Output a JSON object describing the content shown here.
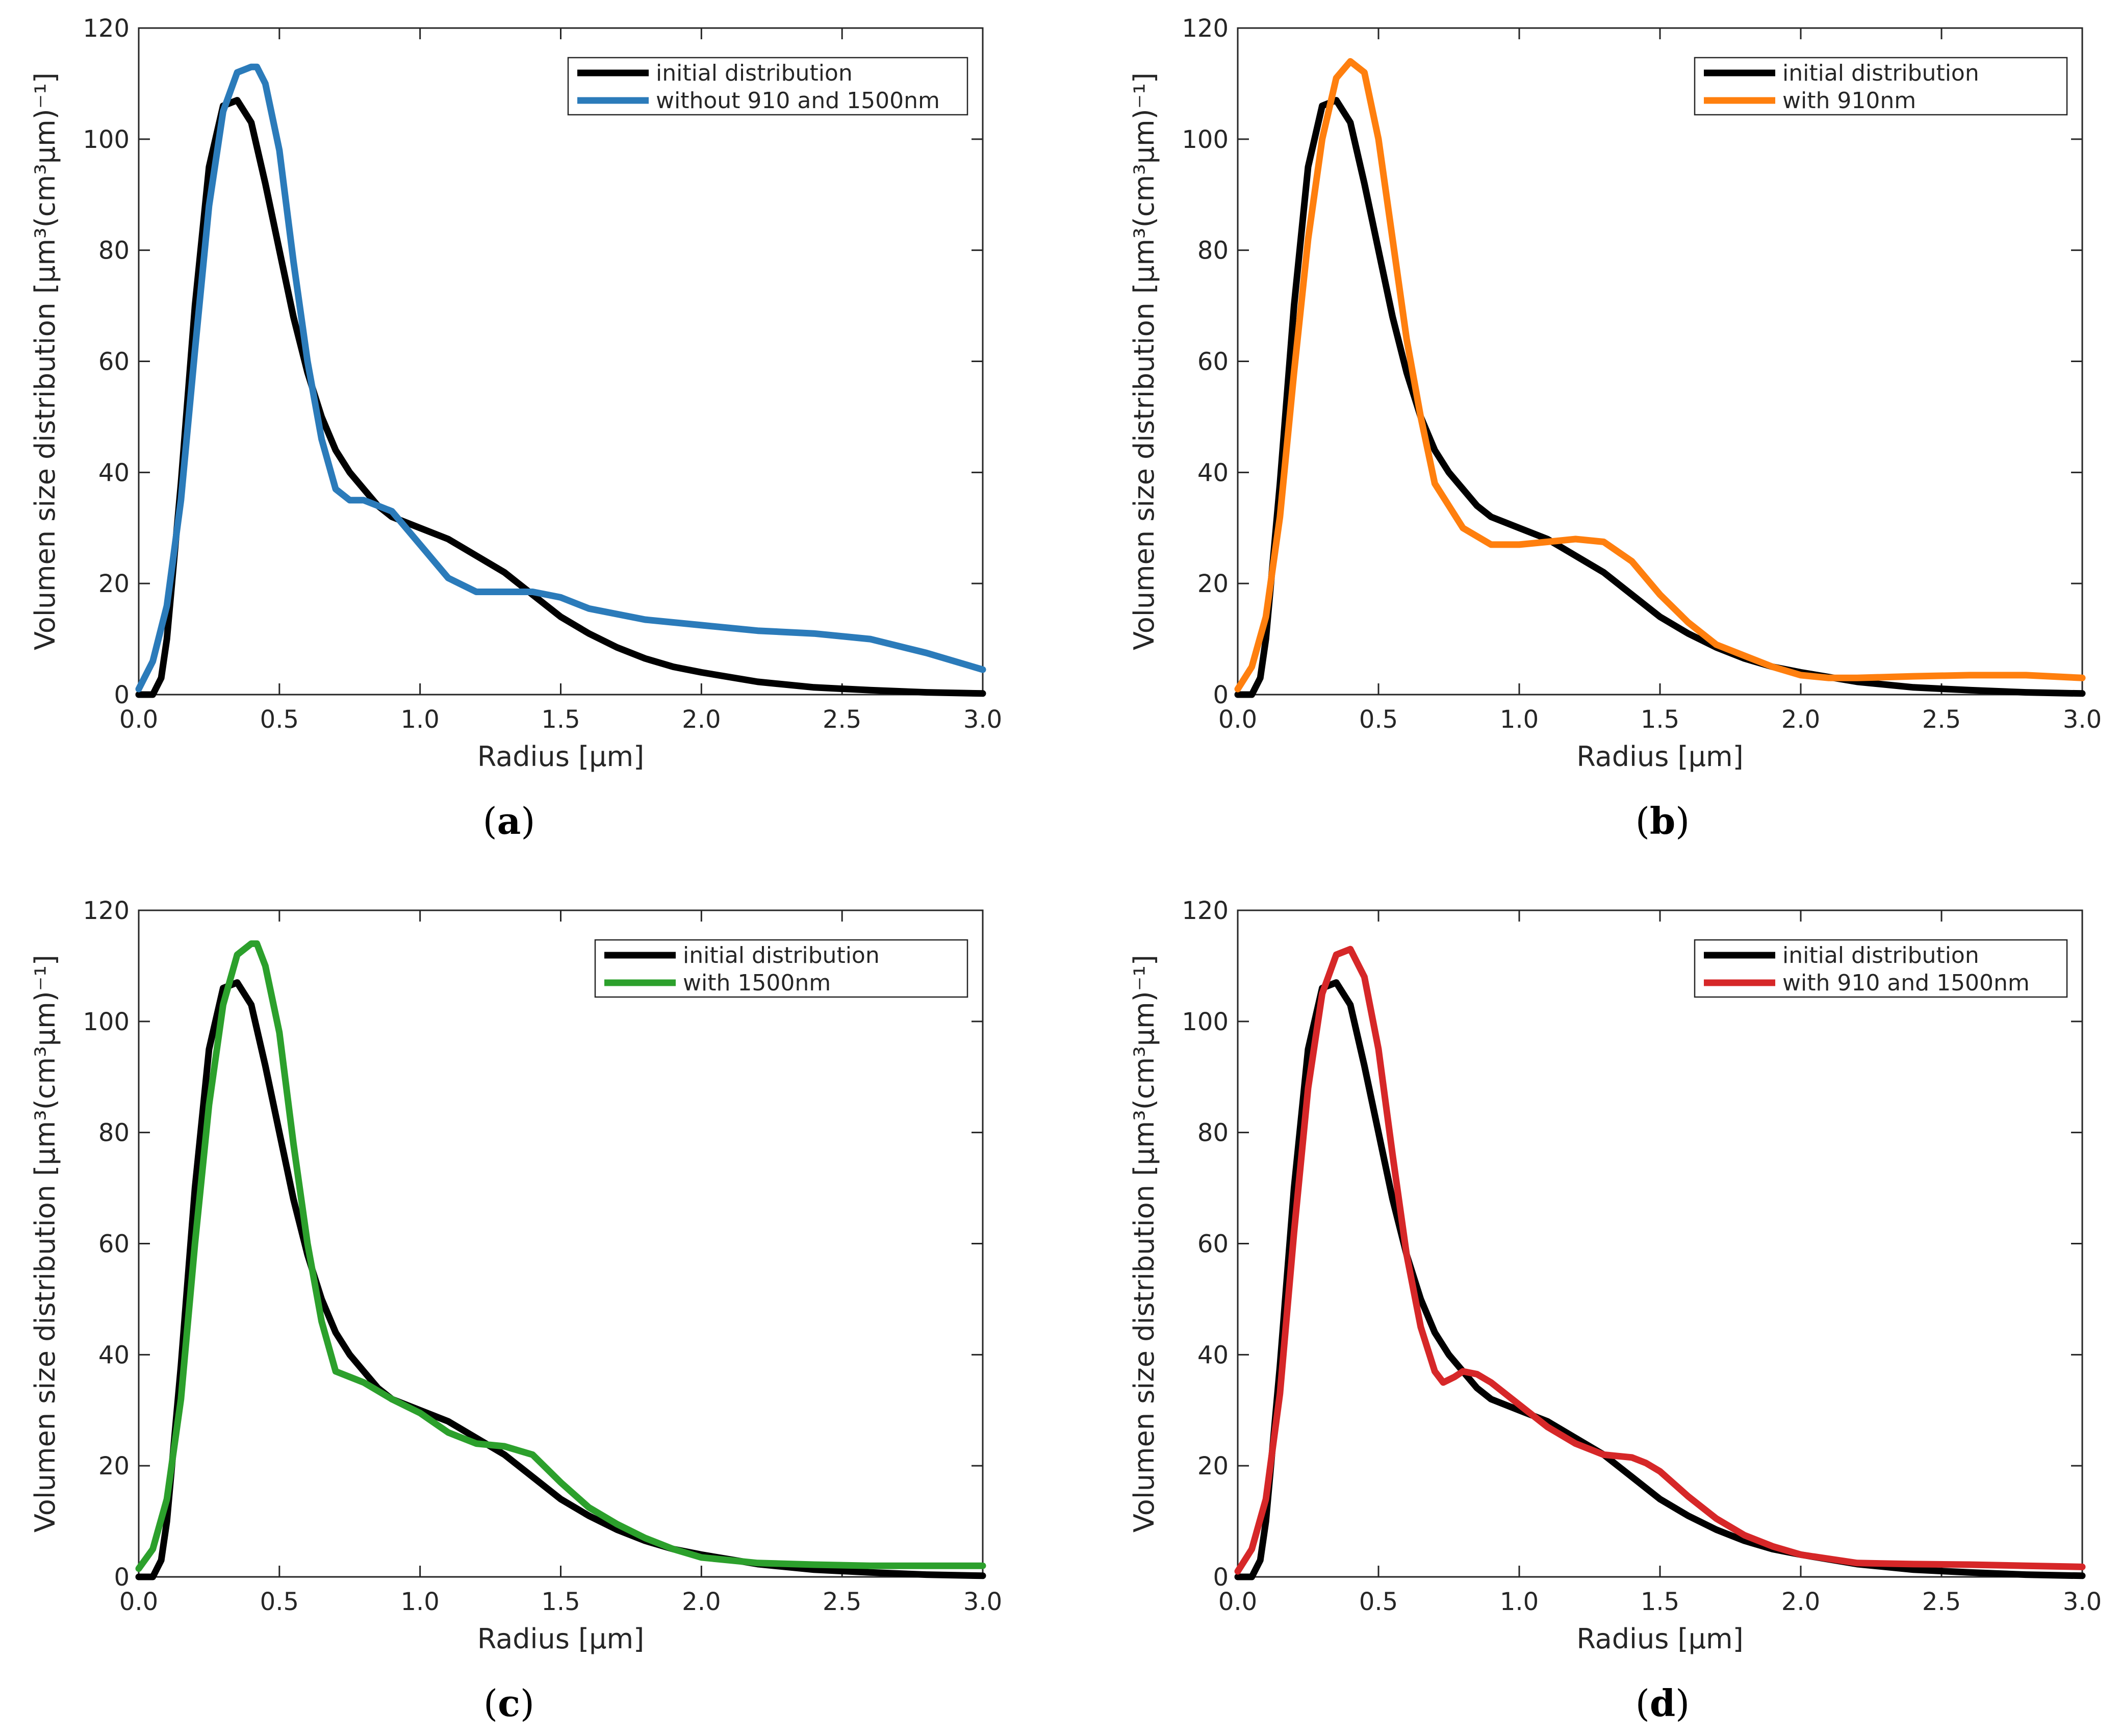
{
  "chart_data": [
    {
      "type": "line",
      "panel_label": "a",
      "xlabel": "Radius [μm]",
      "ylabel": "Volumen size distribution [μm³(cm³μm)⁻¹]",
      "xlim": [
        0,
        3
      ],
      "ylim": [
        0,
        120
      ],
      "xticks": [
        "0.0",
        "0.5",
        "1.0",
        "1.5",
        "2.0",
        "2.5",
        "3.0"
      ],
      "yticks": [
        "0",
        "20",
        "40",
        "60",
        "80",
        "100",
        "120"
      ],
      "legend_position": "top-right",
      "series": [
        {
          "name": "initial distribution",
          "color": "#000000",
          "x": [
            0,
            0.05,
            0.08,
            0.1,
            0.15,
            0.2,
            0.25,
            0.3,
            0.35,
            0.4,
            0.45,
            0.5,
            0.55,
            0.6,
            0.65,
            0.7,
            0.75,
            0.8,
            0.85,
            0.9,
            1.0,
            1.1,
            1.2,
            1.3,
            1.4,
            1.5,
            1.6,
            1.7,
            1.8,
            1.9,
            2.0,
            2.2,
            2.4,
            2.6,
            2.8,
            3.0
          ],
          "y": [
            0,
            0,
            3,
            10,
            38,
            70,
            95,
            106,
            107,
            103,
            92,
            80,
            68,
            58,
            50,
            44,
            40,
            37,
            34,
            32,
            30,
            28,
            25,
            22,
            18,
            14,
            11,
            8.5,
            6.5,
            5,
            4,
            2.3,
            1.3,
            0.8,
            0.4,
            0.2
          ]
        },
        {
          "name": "without 910 and 1500nm",
          "color": "#2b7bba",
          "x": [
            0,
            0.05,
            0.1,
            0.15,
            0.2,
            0.25,
            0.3,
            0.35,
            0.4,
            0.42,
            0.45,
            0.5,
            0.55,
            0.6,
            0.65,
            0.7,
            0.75,
            0.8,
            0.85,
            0.9,
            1.0,
            1.1,
            1.2,
            1.3,
            1.4,
            1.5,
            1.6,
            1.7,
            1.8,
            2.0,
            2.2,
            2.4,
            2.6,
            2.8,
            3.0
          ],
          "y": [
            1,
            6,
            16,
            35,
            62,
            88,
            105,
            112,
            113,
            113,
            110,
            98,
            78,
            60,
            46,
            37,
            35,
            35,
            34,
            33,
            27,
            21,
            18.5,
            18.5,
            18.5,
            17.5,
            15.5,
            14.5,
            13.5,
            12.5,
            11.5,
            11,
            10,
            7.5,
            4.5
          ]
        }
      ]
    },
    {
      "type": "line",
      "panel_label": "b",
      "xlabel": "Radius [μm]",
      "ylabel": "Volumen size distribution [μm³(cm³μm)⁻¹]",
      "xlim": [
        0,
        3
      ],
      "ylim": [
        0,
        120
      ],
      "xticks": [
        "0.0",
        "0.5",
        "1.0",
        "1.5",
        "2.0",
        "2.5",
        "3.0"
      ],
      "yticks": [
        "0",
        "20",
        "40",
        "60",
        "80",
        "100",
        "120"
      ],
      "legend_position": "top-right",
      "series": [
        {
          "name": "initial distribution",
          "color": "#000000",
          "x": [
            0,
            0.05,
            0.08,
            0.1,
            0.15,
            0.2,
            0.25,
            0.3,
            0.35,
            0.4,
            0.45,
            0.5,
            0.55,
            0.6,
            0.65,
            0.7,
            0.75,
            0.8,
            0.85,
            0.9,
            1.0,
            1.1,
            1.2,
            1.3,
            1.4,
            1.5,
            1.6,
            1.7,
            1.8,
            1.9,
            2.0,
            2.2,
            2.4,
            2.6,
            2.8,
            3.0
          ],
          "y": [
            0,
            0,
            3,
            10,
            38,
            70,
            95,
            106,
            107,
            103,
            92,
            80,
            68,
            58,
            50,
            44,
            40,
            37,
            34,
            32,
            30,
            28,
            25,
            22,
            18,
            14,
            11,
            8.5,
            6.5,
            5,
            4,
            2.3,
            1.3,
            0.8,
            0.4,
            0.2
          ]
        },
        {
          "name": "with 910nm",
          "color": "#ff7f0e",
          "x": [
            0,
            0.05,
            0.1,
            0.15,
            0.2,
            0.25,
            0.3,
            0.35,
            0.4,
            0.45,
            0.5,
            0.55,
            0.6,
            0.65,
            0.7,
            0.75,
            0.8,
            0.9,
            1.0,
            1.1,
            1.2,
            1.3,
            1.4,
            1.5,
            1.6,
            1.7,
            1.8,
            1.9,
            2.0,
            2.1,
            2.2,
            2.4,
            2.6,
            2.8,
            3.0
          ],
          "y": [
            1,
            5,
            14,
            32,
            58,
            82,
            100,
            111,
            114,
            112,
            100,
            82,
            64,
            50,
            38,
            34,
            30,
            27,
            27,
            27.5,
            28,
            27.5,
            24,
            18,
            13,
            9,
            7,
            5,
            3.5,
            3,
            3,
            3.3,
            3.5,
            3.5,
            3
          ]
        }
      ]
    },
    {
      "type": "line",
      "panel_label": "c",
      "xlabel": "Radius [μm]",
      "ylabel": "Volumen size distribution [μm³(cm³μm)⁻¹]",
      "xlim": [
        0,
        3
      ],
      "ylim": [
        0,
        120
      ],
      "xticks": [
        "0.0",
        "0.5",
        "1.0",
        "1.5",
        "2.0",
        "2.5",
        "3.0"
      ],
      "yticks": [
        "0",
        "20",
        "40",
        "60",
        "80",
        "100",
        "120"
      ],
      "legend_position": "top-right",
      "series": [
        {
          "name": "initial distribution",
          "color": "#000000",
          "x": [
            0,
            0.05,
            0.08,
            0.1,
            0.15,
            0.2,
            0.25,
            0.3,
            0.35,
            0.4,
            0.45,
            0.5,
            0.55,
            0.6,
            0.65,
            0.7,
            0.75,
            0.8,
            0.85,
            0.9,
            1.0,
            1.1,
            1.2,
            1.3,
            1.4,
            1.5,
            1.6,
            1.7,
            1.8,
            1.9,
            2.0,
            2.2,
            2.4,
            2.6,
            2.8,
            3.0
          ],
          "y": [
            0,
            0,
            3,
            10,
            38,
            70,
            95,
            106,
            107,
            103,
            92,
            80,
            68,
            58,
            50,
            44,
            40,
            37,
            34,
            32,
            30,
            28,
            25,
            22,
            18,
            14,
            11,
            8.5,
            6.5,
            5,
            4,
            2.3,
            1.3,
            0.8,
            0.4,
            0.2
          ]
        },
        {
          "name": "with 1500nm",
          "color": "#2ca02c",
          "x": [
            0,
            0.05,
            0.1,
            0.15,
            0.2,
            0.25,
            0.3,
            0.35,
            0.4,
            0.42,
            0.45,
            0.5,
            0.55,
            0.6,
            0.65,
            0.7,
            0.75,
            0.8,
            0.9,
            1.0,
            1.1,
            1.2,
            1.3,
            1.4,
            1.5,
            1.6,
            1.7,
            1.8,
            1.9,
            2.0,
            2.2,
            2.4,
            2.6,
            2.8,
            3.0
          ],
          "y": [
            1.5,
            5,
            14,
            32,
            60,
            85,
            103,
            112,
            114,
            114,
            110,
            98,
            78,
            60,
            46,
            37,
            36,
            35,
            32,
            29.5,
            26,
            24,
            23.5,
            22,
            17,
            12.5,
            9.5,
            7,
            5,
            3.5,
            2.5,
            2.2,
            2,
            2,
            2
          ]
        }
      ]
    },
    {
      "type": "line",
      "panel_label": "d",
      "xlabel": "Radius [μm]",
      "ylabel": "Volumen size distribution [μm³(cm³μm)⁻¹]",
      "xlim": [
        0,
        3
      ],
      "ylim": [
        0,
        120
      ],
      "xticks": [
        "0.0",
        "0.5",
        "1.0",
        "1.5",
        "2.0",
        "2.5",
        "3.0"
      ],
      "yticks": [
        "0",
        "20",
        "40",
        "60",
        "80",
        "100",
        "120"
      ],
      "legend_position": "top-right",
      "series": [
        {
          "name": "initial distribution",
          "color": "#000000",
          "x": [
            0,
            0.05,
            0.08,
            0.1,
            0.15,
            0.2,
            0.25,
            0.3,
            0.35,
            0.4,
            0.45,
            0.5,
            0.55,
            0.6,
            0.65,
            0.7,
            0.75,
            0.8,
            0.85,
            0.9,
            1.0,
            1.1,
            1.2,
            1.3,
            1.4,
            1.5,
            1.6,
            1.7,
            1.8,
            1.9,
            2.0,
            2.2,
            2.4,
            2.6,
            2.8,
            3.0
          ],
          "y": [
            0,
            0,
            3,
            10,
            38,
            70,
            95,
            106,
            107,
            103,
            92,
            80,
            68,
            58,
            50,
            44,
            40,
            37,
            34,
            32,
            30,
            28,
            25,
            22,
            18,
            14,
            11,
            8.5,
            6.5,
            5,
            4,
            2.3,
            1.3,
            0.8,
            0.4,
            0.2
          ]
        },
        {
          "name": "with 910 and 1500nm",
          "color": "#d62728",
          "x": [
            0,
            0.05,
            0.1,
            0.15,
            0.2,
            0.25,
            0.3,
            0.35,
            0.4,
            0.45,
            0.5,
            0.55,
            0.6,
            0.65,
            0.7,
            0.73,
            0.77,
            0.8,
            0.85,
            0.9,
            1.0,
            1.1,
            1.2,
            1.3,
            1.4,
            1.45,
            1.5,
            1.6,
            1.7,
            1.8,
            1.9,
            2.0,
            2.2,
            2.4,
            2.6,
            2.8,
            3.0
          ],
          "y": [
            1,
            5,
            14,
            33,
            62,
            88,
            105,
            112,
            113,
            108,
            95,
            76,
            58,
            45,
            37,
            35,
            36,
            37,
            36.5,
            35,
            31,
            27,
            24,
            22,
            21.5,
            20.5,
            19,
            14.5,
            10.5,
            7.5,
            5.5,
            4,
            2.5,
            2.3,
            2.2,
            2,
            1.8
          ]
        }
      ]
    }
  ]
}
